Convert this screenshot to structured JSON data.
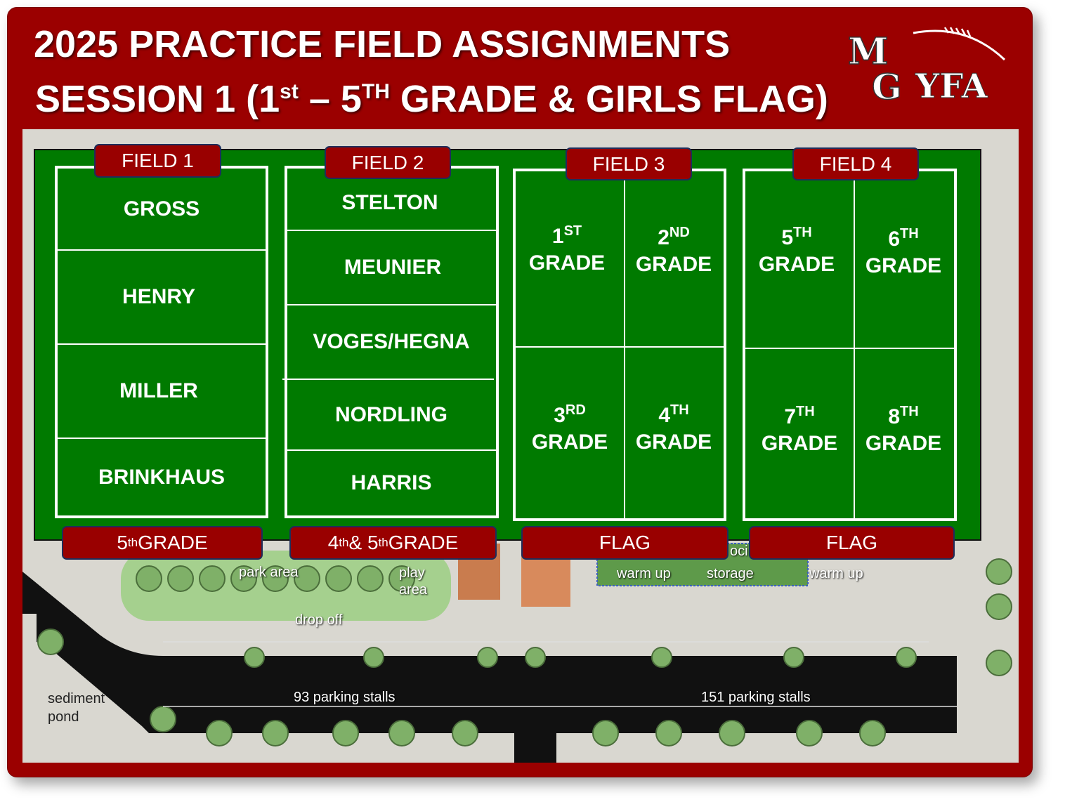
{
  "header": {
    "title_line1": "2025 PRACTICE FIELD ASSIGNMENTS",
    "title_line2_prefix": "SESSION 1 (1",
    "title_line2_sup1": "st",
    "title_line2_mid": " – 5",
    "title_line2_sup2": "TH",
    "title_line2_suffix": " GRADE & GIRLS FLAG)",
    "logo_text": "MGYFA"
  },
  "colors": {
    "frame": "#9b0000",
    "grass": "#007a00",
    "label": "#990000",
    "label_border": "#1f2d5a"
  },
  "fields": [
    {
      "name": "FIELD 1",
      "rows": [
        "GROSS",
        "HENRY",
        "MILLER",
        "BRINKHAUS"
      ],
      "bottom": {
        "num": "5",
        "sup": "th",
        "rest": " GRADE"
      }
    },
    {
      "name": "FIELD 2",
      "rows": [
        "STELTON",
        "MEUNIER",
        "VOGES/HEGNA",
        "NORDLING",
        "HARRIS"
      ],
      "bottom": {
        "num": "4",
        "sup": "th",
        "mid": " & 5",
        "sup2": "th",
        "rest": " GRADE"
      }
    },
    {
      "name": "FIELD 3",
      "cells": [
        {
          "num": "1",
          "sup": "ST",
          "word": "GRADE"
        },
        {
          "num": "2",
          "sup": "ND",
          "word": "GRADE"
        },
        {
          "num": "3",
          "sup": "RD",
          "word": "GRADE"
        },
        {
          "num": "4",
          "sup": "TH",
          "word": "GRADE"
        }
      ],
      "bottom": "FLAG"
    },
    {
      "name": "FIELD 4",
      "cells": [
        {
          "num": "5",
          "sup": "TH",
          "word": "GRADE"
        },
        {
          "num": "6",
          "sup": "TH",
          "word": "GRADE"
        },
        {
          "num": "7",
          "sup": "TH",
          "word": "GRADE"
        },
        {
          "num": "8",
          "sup": "TH",
          "word": "GRADE"
        }
      ],
      "bottom": "FLAG"
    }
  ],
  "map_labels": {
    "park_area": "park area",
    "play_area": "play area",
    "drop_off": "drop off",
    "warm_up_left": "warm up",
    "storage": "storage",
    "oci": "oci",
    "warm_up_right": "warm up",
    "parking_left": "93 parking stalls",
    "parking_right": "151 parking stalls",
    "sediment_pond": "sediment pond"
  }
}
